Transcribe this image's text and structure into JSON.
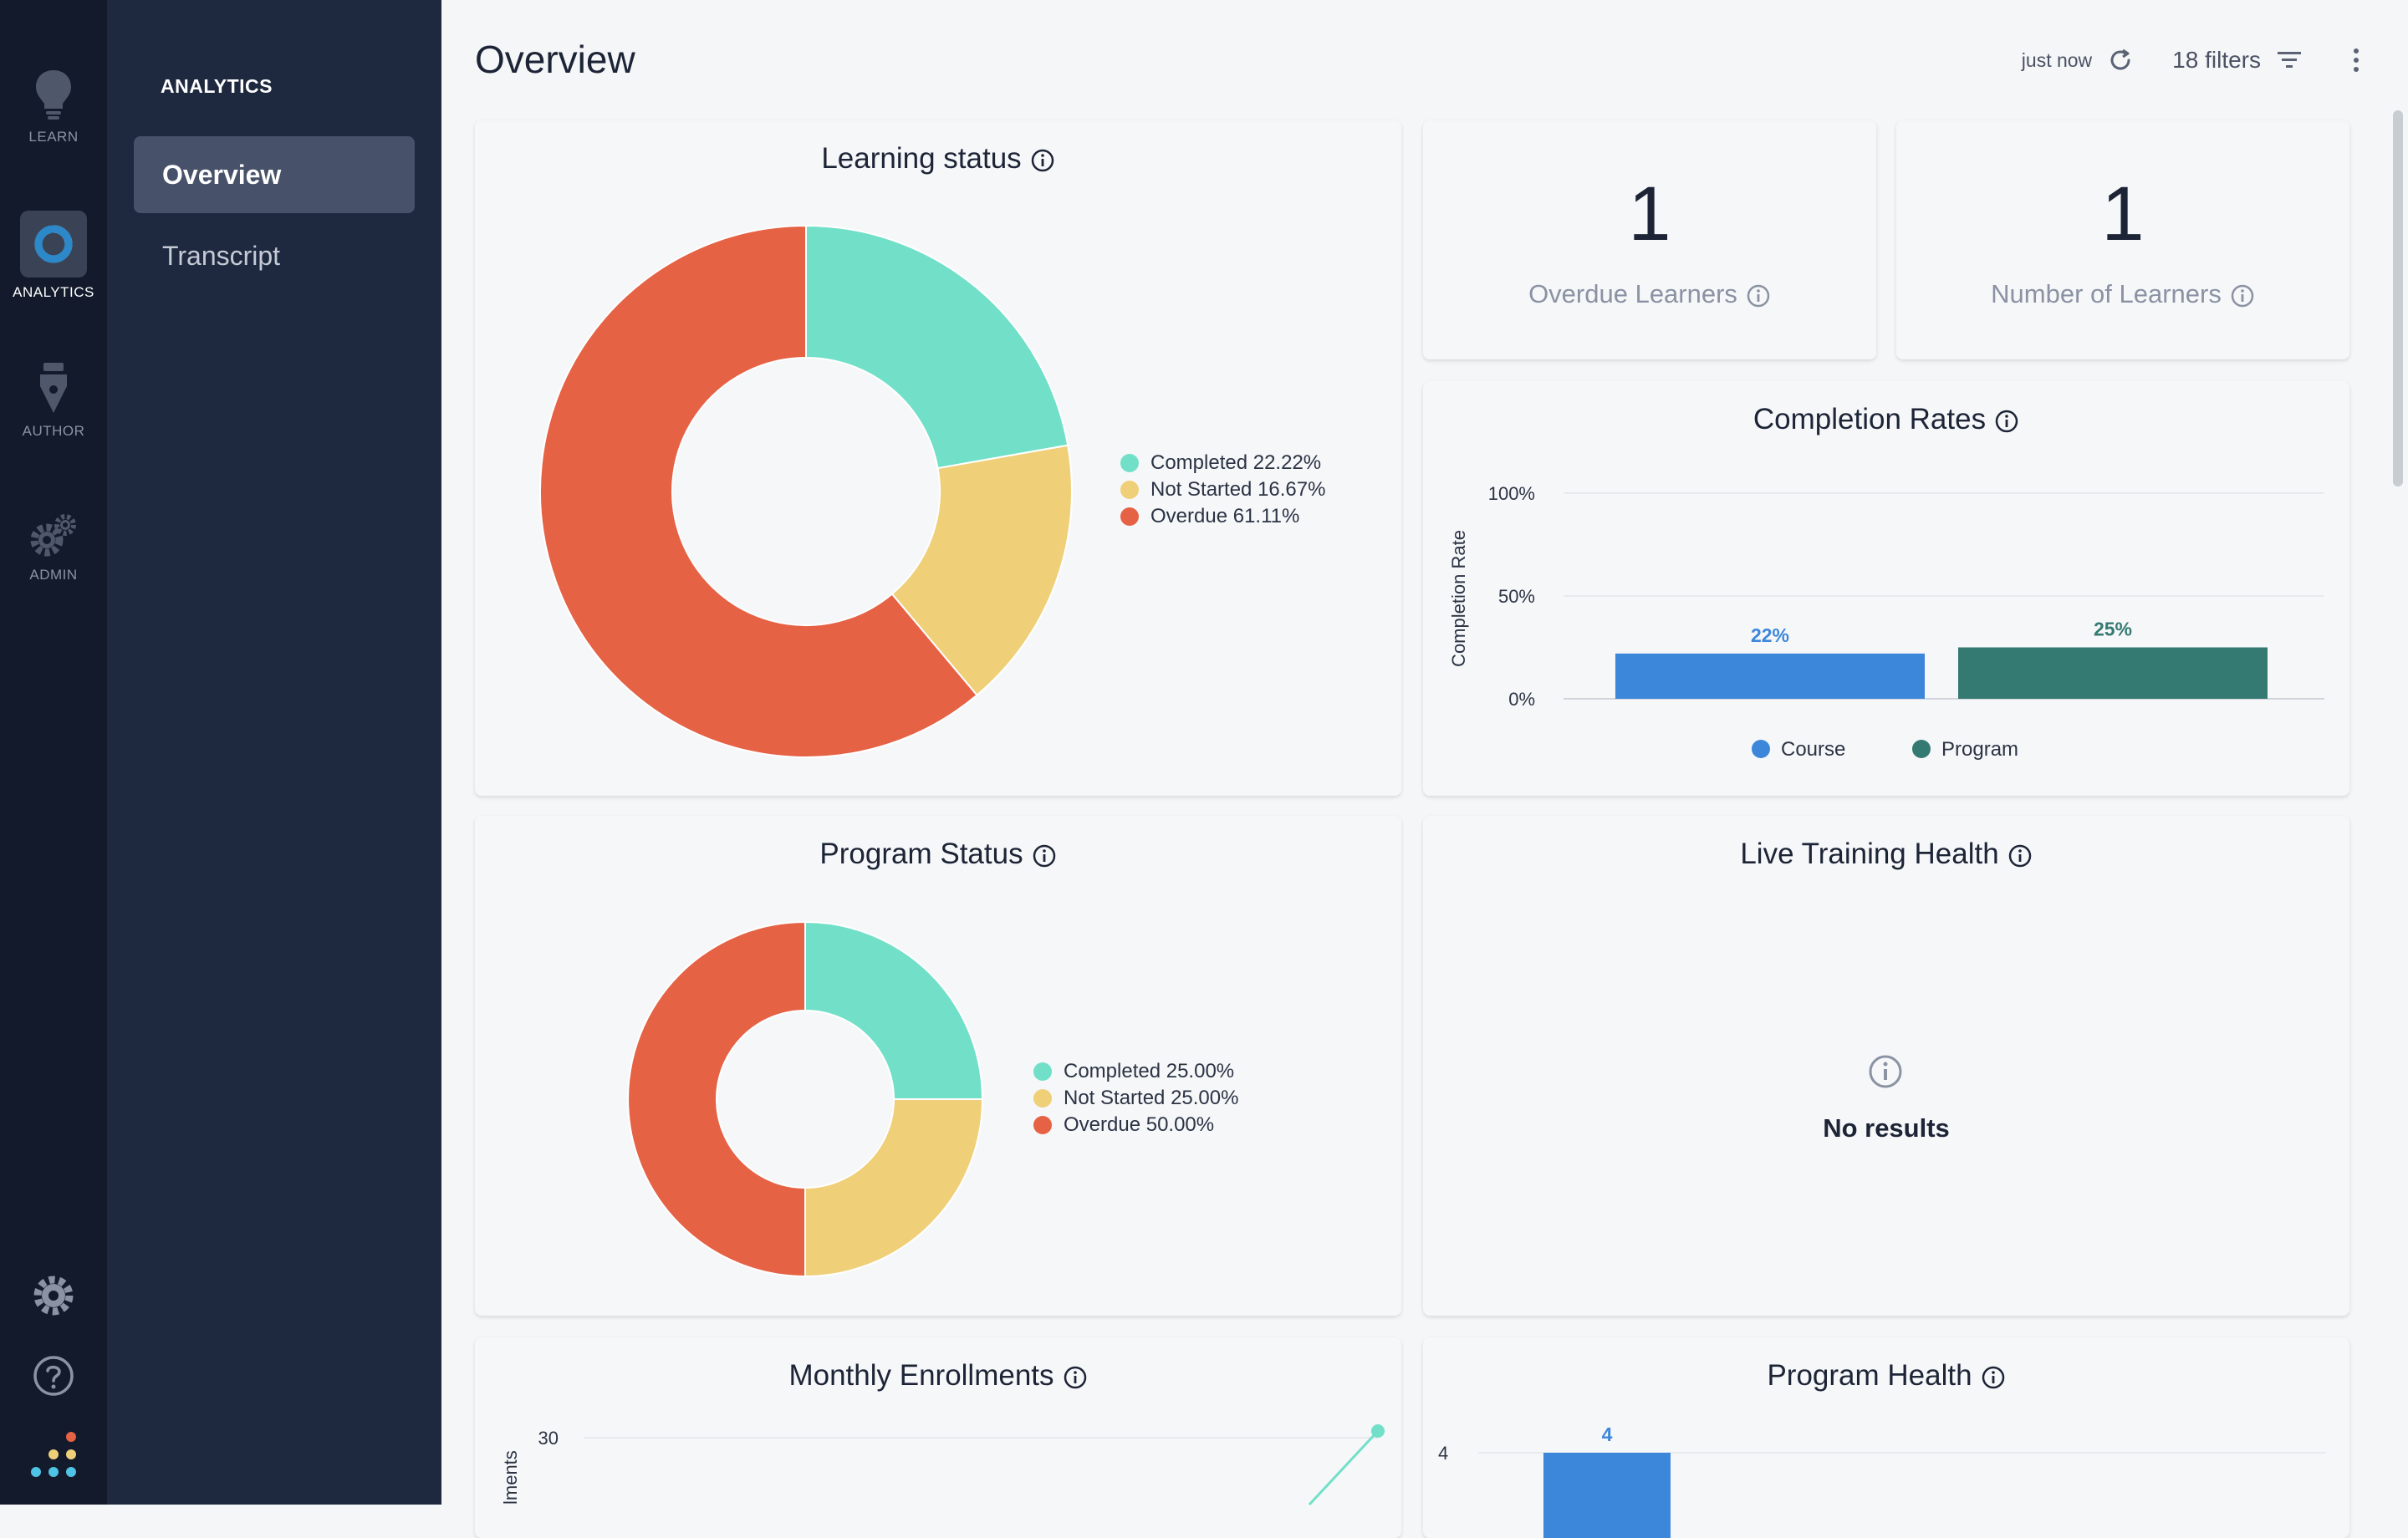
{
  "rail": {
    "items": [
      {
        "label": "LEARN",
        "icon": "lightbulb-icon"
      },
      {
        "label": "ANALYTICS",
        "icon": "analytics-icon"
      },
      {
        "label": "AUTHOR",
        "icon": "pen-nib-icon"
      },
      {
        "label": "ADMIN",
        "icon": "gears-icon"
      }
    ],
    "bottom_icons": [
      "settings-gear-icon",
      "help-icon",
      "app-logo-dots"
    ]
  },
  "subnav": {
    "title": "ANALYTICS",
    "items": [
      {
        "label": "Overview",
        "active": true
      },
      {
        "label": "Transcript",
        "active": false
      }
    ]
  },
  "header": {
    "title": "Overview",
    "refreshed": "just now",
    "filters": "18 filters"
  },
  "colors": {
    "completed": "#72e0c8",
    "not_started": "#efcf78",
    "overdue": "#e66245",
    "course": "#3d87da",
    "program": "#357a72"
  },
  "cards": {
    "learning_status": {
      "title": "Learning status",
      "legend": [
        "Completed 22.22%",
        "Not Started 16.67%",
        "Overdue 61.11%"
      ]
    },
    "overdue_learners": {
      "value": "1",
      "label": "Overdue Learners"
    },
    "number_of_learners": {
      "value": "1",
      "label": "Number of Learners"
    },
    "completion_rates": {
      "title": "Completion Rates"
    },
    "program_status": {
      "title": "Program Status",
      "legend": [
        "Completed 25.00%",
        "Not Started 25.00%",
        "Overdue 50.00%"
      ]
    },
    "live_training": {
      "title": "Live Training Health",
      "empty": "No results"
    },
    "monthly_enrollments": {
      "title": "Monthly Enrollments"
    },
    "program_health": {
      "title": "Program Health"
    }
  },
  "chart_data": [
    {
      "type": "pie",
      "title": "Learning status",
      "categories": [
        "Completed",
        "Not Started",
        "Overdue"
      ],
      "values": [
        22.22,
        16.67,
        61.11
      ]
    },
    {
      "type": "pie",
      "title": "Program Status",
      "categories": [
        "Completed",
        "Not Started",
        "Overdue"
      ],
      "values": [
        25.0,
        25.0,
        50.0
      ]
    },
    {
      "type": "bar",
      "title": "Completion Rates",
      "ylabel": "Completion Rate",
      "yticks": [
        "0%",
        "50%",
        "100%"
      ],
      "ylim": [
        0,
        100
      ],
      "series": [
        {
          "name": "Course",
          "values": [
            22
          ],
          "label": "22%"
        },
        {
          "name": "Program",
          "values": [
            25
          ],
          "label": "25%"
        }
      ],
      "legend": "bottom-center"
    },
    {
      "type": "line",
      "title": "Monthly Enrollments",
      "ylabel_partial": "lments",
      "yticks": [
        "30"
      ],
      "series": [
        {
          "values": [
            30
          ]
        }
      ]
    },
    {
      "type": "bar",
      "title": "Program Health",
      "yticks": [
        "4"
      ],
      "series": [
        {
          "values": [
            4
          ],
          "label": "4"
        }
      ]
    }
  ]
}
